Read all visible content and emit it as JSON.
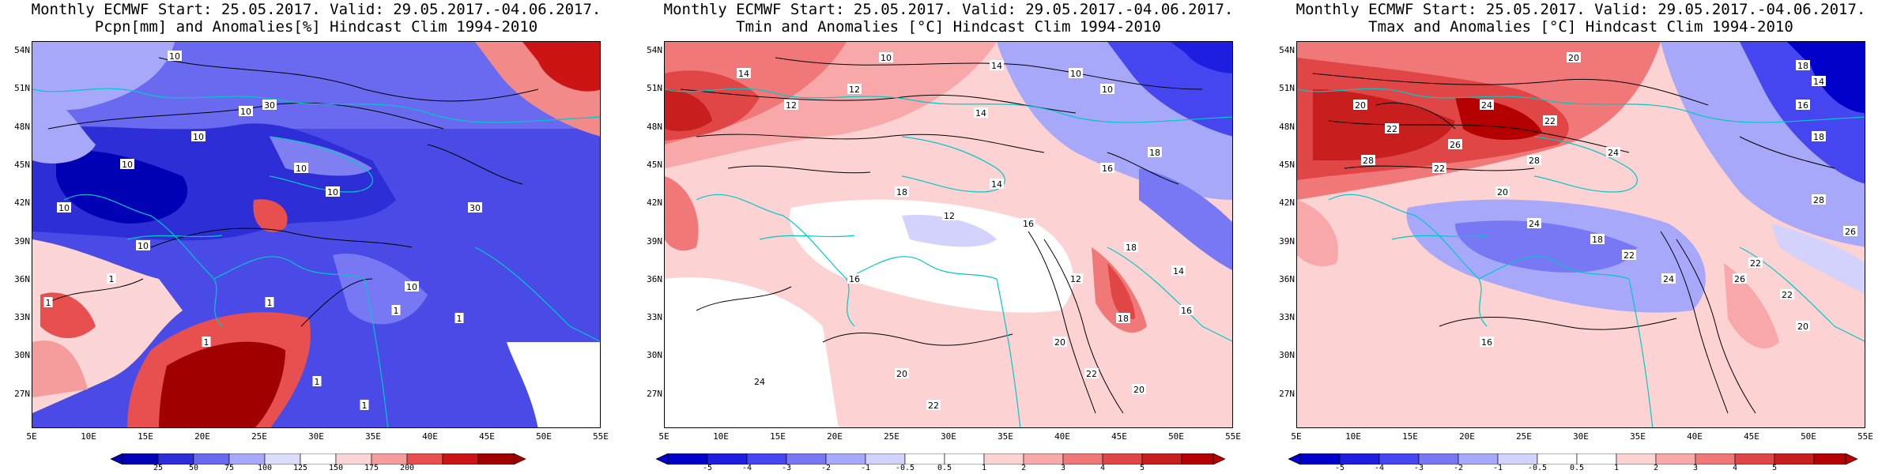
{
  "panels": [
    {
      "id": "pcpn",
      "title_line1": "Monthly ECMWF Start: 25.05.2017. Valid: 29.05.2017.-04.06.2017.",
      "title_line2": "Pcpn[mm] and Anomalies[%] Hindcast Clim 1994-2010",
      "colorbar": {
        "colors": [
          "#0000b4",
          "#2e2ed6",
          "#6a6af0",
          "#a8a8fa",
          "#dcdcfd",
          "#ffffff",
          "#fcd6d6",
          "#f59c9c",
          "#e85050",
          "#cc1414",
          "#a00000"
        ],
        "labels": [
          "25",
          "50",
          "75",
          "100",
          "125",
          "150",
          "175",
          "200"
        ]
      },
      "contour_labels": [
        "10",
        "10",
        "10",
        "10",
        "10",
        "10",
        "10",
        "10",
        "10",
        "30",
        "30",
        "1",
        "1",
        "1",
        "1",
        "1",
        "1",
        "1",
        "1"
      ]
    },
    {
      "id": "tmin",
      "title_line1": "Monthly ECMWF Start: 25.05.2017. Valid: 29.05.2017.-04.06.2017.",
      "title_line2": "Tmin and Anomalies [°C] Hindcast Clim 1994-2010",
      "colorbar": {
        "colors": [
          "#0000c8",
          "#1e1ee0",
          "#4646f0",
          "#7878f5",
          "#a8a8fa",
          "#d2d2fc",
          "#ffffff",
          "#ffffff",
          "#fcd2d2",
          "#f8a8a8",
          "#f07878",
          "#e04646",
          "#c81e1e",
          "#b40000"
        ],
        "labels": [
          "-5",
          "-4",
          "-3",
          "-2",
          "-1",
          "-0.5",
          "0.5",
          "1",
          "2",
          "3",
          "4",
          "5"
        ]
      },
      "contour_labels": [
        "10",
        "12",
        "14",
        "14",
        "16",
        "18",
        "12",
        "14",
        "10",
        "10",
        "18",
        "16",
        "14",
        "12",
        "18",
        "20",
        "16",
        "20",
        "22",
        "24",
        "22",
        "20",
        "18",
        "16",
        "14",
        "12"
      ]
    },
    {
      "id": "tmax",
      "title_line1": "Monthly ECMWF Start: 25.05.2017. Valid: 29.05.2017.-04.06.2017.",
      "title_line2": "Tmax and Anomalies [°C] Hindcast Clim 1994-2010",
      "colorbar": {
        "colors": [
          "#0000c8",
          "#1e1ee0",
          "#4646f0",
          "#7878f5",
          "#a8a8fa",
          "#d2d2fc",
          "#ffffff",
          "#ffffff",
          "#fcd2d2",
          "#f8a8a8",
          "#f07878",
          "#e04646",
          "#c81e1e",
          "#b40000"
        ],
        "labels": [
          "-5",
          "-4",
          "-3",
          "-2",
          "-1",
          "-0.5",
          "0.5",
          "1",
          "2",
          "3",
          "4",
          "5"
        ]
      },
      "contour_labels": [
        "20",
        "18",
        "14",
        "16",
        "18",
        "20",
        "22",
        "24",
        "22",
        "24",
        "26",
        "28",
        "28",
        "20",
        "22",
        "24",
        "26",
        "18",
        "22",
        "24",
        "16",
        "20",
        "22",
        "22",
        "26",
        "28"
      ]
    }
  ],
  "lat_ticks": [
    "54N",
    "51N",
    "48N",
    "45N",
    "42N",
    "39N",
    "36N",
    "33N",
    "30N",
    "27N"
  ],
  "lon_ticks": [
    "5E",
    "10E",
    "15E",
    "20E",
    "25E",
    "30E",
    "35E",
    "40E",
    "45E",
    "50E",
    "55E"
  ],
  "colors": {
    "coast": "#00c8c8",
    "contour": "#000000"
  }
}
